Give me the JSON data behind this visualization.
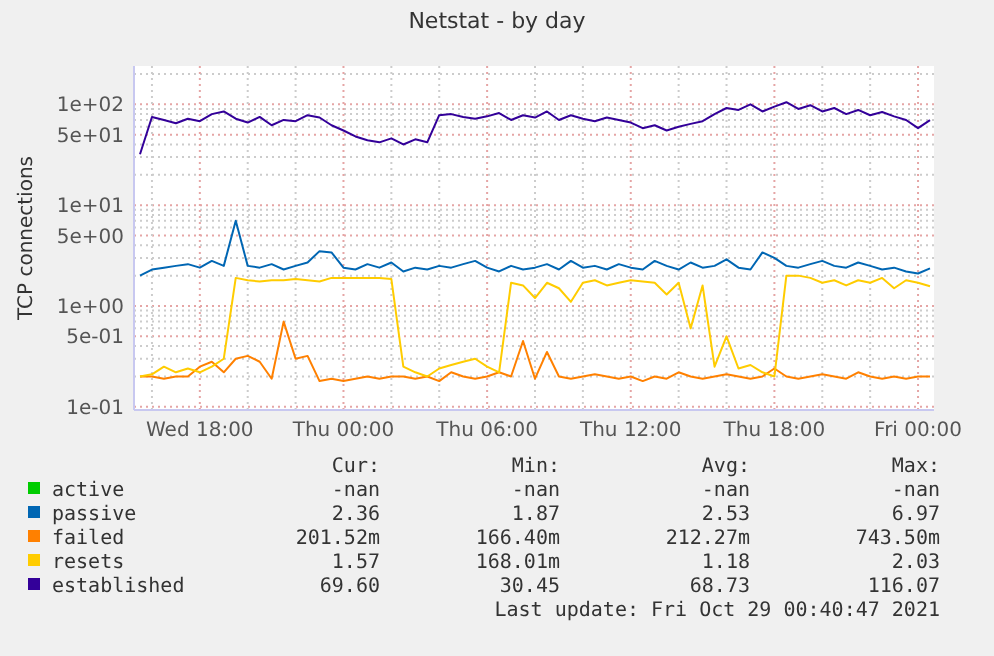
{
  "chart_data": {
    "type": "line",
    "title": "Netstat - by day",
    "ylabel": "TCP connections",
    "log": true,
    "grid": true,
    "legend": "bottom",
    "marker": "none",
    "line_style": "solid",
    "xlim": [
      "2021-10-27T15:15",
      "2021-10-29T00:40"
    ],
    "xticks": [
      {
        "value": "2021-10-27T16:00",
        "label": null
      },
      {
        "value": "2021-10-27T18:00",
        "label": "Wed 18:00"
      },
      {
        "value": "2021-10-27T20:00",
        "label": null
      },
      {
        "value": "2021-10-27T22:00",
        "label": null
      },
      {
        "value": "2021-10-28T00:00",
        "label": "Thu 00:00"
      },
      {
        "value": "2021-10-28T02:00",
        "label": null
      },
      {
        "value": "2021-10-28T04:00",
        "label": null
      },
      {
        "value": "2021-10-28T06:00",
        "label": "Thu 06:00"
      },
      {
        "value": "2021-10-28T08:00",
        "label": null
      },
      {
        "value": "2021-10-28T10:00",
        "label": null
      },
      {
        "value": "2021-10-28T12:00",
        "label": "Thu 12:00"
      },
      {
        "value": "2021-10-28T14:00",
        "label": null
      },
      {
        "value": "2021-10-28T16:00",
        "label": null
      },
      {
        "value": "2021-10-28T18:00",
        "label": "Thu 18:00"
      },
      {
        "value": "2021-10-28T20:00",
        "label": null
      },
      {
        "value": "2021-10-28T22:00",
        "label": null
      },
      {
        "value": "2021-10-29T00:00",
        "label": "Fri 00:00"
      }
    ],
    "ylim": [
      0.093,
      240
    ],
    "yticks": [
      {
        "value": 0.1,
        "label": "1e-01"
      },
      {
        "value": 0.2,
        "label": null
      },
      {
        "value": 0.3,
        "label": null
      },
      {
        "value": 0.4,
        "label": null
      },
      {
        "value": 0.5,
        "label": "5e-01"
      },
      {
        "value": 0.6,
        "label": null
      },
      {
        "value": 0.7,
        "label": null
      },
      {
        "value": 0.8,
        "label": null
      },
      {
        "value": 0.9,
        "label": null
      },
      {
        "value": 1,
        "label": "1e+00"
      },
      {
        "value": 2,
        "label": null
      },
      {
        "value": 3,
        "label": null
      },
      {
        "value": 4,
        "label": null
      },
      {
        "value": 5,
        "label": "5e+00"
      },
      {
        "value": 6,
        "label": null
      },
      {
        "value": 7,
        "label": null
      },
      {
        "value": 8,
        "label": null
      },
      {
        "value": 9,
        "label": null
      },
      {
        "value": 10,
        "label": "1e+01"
      },
      {
        "value": 20,
        "label": null
      },
      {
        "value": 30,
        "label": null
      },
      {
        "value": 40,
        "label": null
      },
      {
        "value": 50,
        "label": "5e+01"
      },
      {
        "value": 60,
        "label": null
      },
      {
        "value": 70,
        "label": null
      },
      {
        "value": 80,
        "label": null
      },
      {
        "value": 90,
        "label": null
      },
      {
        "value": 100,
        "label": "1e+02"
      },
      {
        "value": 200,
        "label": null
      }
    ],
    "x": [
      "2021-10-27T15:30",
      "2021-10-27T16:00",
      "2021-10-27T16:30",
      "2021-10-27T17:00",
      "2021-10-27T17:30",
      "2021-10-27T18:00",
      "2021-10-27T18:30",
      "2021-10-27T19:00",
      "2021-10-27T19:30",
      "2021-10-27T20:00",
      "2021-10-27T20:30",
      "2021-10-27T21:00",
      "2021-10-27T21:30",
      "2021-10-27T22:00",
      "2021-10-27T22:30",
      "2021-10-27T23:00",
      "2021-10-27T23:30",
      "2021-10-28T00:00",
      "2021-10-28T00:30",
      "2021-10-28T01:00",
      "2021-10-28T01:30",
      "2021-10-28T02:00",
      "2021-10-28T02:30",
      "2021-10-28T03:00",
      "2021-10-28T03:30",
      "2021-10-28T04:00",
      "2021-10-28T04:30",
      "2021-10-28T05:00",
      "2021-10-28T05:30",
      "2021-10-28T06:00",
      "2021-10-28T06:30",
      "2021-10-28T07:00",
      "2021-10-28T07:30",
      "2021-10-28T08:00",
      "2021-10-28T08:30",
      "2021-10-28T09:00",
      "2021-10-28T09:30",
      "2021-10-28T10:00",
      "2021-10-28T10:30",
      "2021-10-28T11:00",
      "2021-10-28T11:30",
      "2021-10-28T12:00",
      "2021-10-28T12:30",
      "2021-10-28T13:00",
      "2021-10-28T13:30",
      "2021-10-28T14:00",
      "2021-10-28T14:30",
      "2021-10-28T15:00",
      "2021-10-28T15:30",
      "2021-10-28T16:00",
      "2021-10-28T16:30",
      "2021-10-28T17:00",
      "2021-10-28T17:30",
      "2021-10-28T18:00",
      "2021-10-28T18:30",
      "2021-10-28T19:00",
      "2021-10-28T19:30",
      "2021-10-28T20:00",
      "2021-10-28T20:30",
      "2021-10-28T21:00",
      "2021-10-28T21:30",
      "2021-10-28T22:00",
      "2021-10-28T22:30",
      "2021-10-28T23:00",
      "2021-10-28T23:30",
      "2021-10-29T00:00",
      "2021-10-29T00:30"
    ],
    "series": [
      {
        "name": "active",
        "color": "#00cc00",
        "values": [
          null,
          null,
          null,
          null,
          null,
          null,
          null,
          null,
          null,
          null,
          null,
          null,
          null,
          null,
          null,
          null,
          null,
          null,
          null,
          null,
          null,
          null,
          null,
          null,
          null,
          null,
          null,
          null,
          null,
          null,
          null,
          null,
          null,
          null,
          null,
          null,
          null,
          null,
          null,
          null,
          null,
          null,
          null,
          null,
          null,
          null,
          null,
          null,
          null,
          null,
          null,
          null,
          null,
          null,
          null,
          null,
          null,
          null,
          null,
          null,
          null,
          null,
          null,
          null,
          null,
          null,
          null
        ]
      },
      {
        "name": "passive",
        "color": "#0066b3",
        "values": [
          2.0,
          2.3,
          2.4,
          2.5,
          2.6,
          2.4,
          2.8,
          2.5,
          7.0,
          2.5,
          2.4,
          2.6,
          2.3,
          2.5,
          2.7,
          3.5,
          3.4,
          2.4,
          2.3,
          2.6,
          2.4,
          2.7,
          2.2,
          2.4,
          2.3,
          2.5,
          2.4,
          2.6,
          2.8,
          2.4,
          2.2,
          2.5,
          2.3,
          2.4,
          2.6,
          2.3,
          2.8,
          2.4,
          2.5,
          2.3,
          2.6,
          2.4,
          2.3,
          2.8,
          2.5,
          2.3,
          2.7,
          2.4,
          2.5,
          2.9,
          2.4,
          2.3,
          3.4,
          3.0,
          2.5,
          2.4,
          2.6,
          2.8,
          2.5,
          2.4,
          2.7,
          2.5,
          2.3,
          2.4,
          2.2,
          2.1,
          2.36
        ]
      },
      {
        "name": "failed",
        "color": "#ff8000",
        "values": [
          0.2,
          0.2,
          0.19,
          0.2,
          0.2,
          0.25,
          0.28,
          0.22,
          0.3,
          0.32,
          0.28,
          0.19,
          0.7,
          0.3,
          0.32,
          0.18,
          0.19,
          0.18,
          0.19,
          0.2,
          0.19,
          0.2,
          0.2,
          0.19,
          0.2,
          0.18,
          0.22,
          0.2,
          0.19,
          0.2,
          0.22,
          0.2,
          0.45,
          0.19,
          0.35,
          0.2,
          0.19,
          0.2,
          0.21,
          0.2,
          0.19,
          0.2,
          0.18,
          0.2,
          0.19,
          0.22,
          0.2,
          0.19,
          0.2,
          0.21,
          0.2,
          0.19,
          0.2,
          0.24,
          0.2,
          0.19,
          0.2,
          0.21,
          0.2,
          0.19,
          0.22,
          0.2,
          0.19,
          0.2,
          0.19,
          0.2,
          0.2
        ]
      },
      {
        "name": "resets",
        "color": "#ffcc00",
        "values": [
          0.2,
          0.21,
          0.25,
          0.22,
          0.24,
          0.22,
          0.25,
          0.3,
          1.9,
          1.8,
          1.75,
          1.8,
          1.8,
          1.85,
          1.8,
          1.75,
          1.9,
          1.9,
          1.9,
          1.9,
          1.9,
          1.85,
          0.25,
          0.22,
          0.2,
          0.24,
          0.26,
          0.28,
          0.3,
          0.25,
          0.22,
          1.7,
          1.6,
          1.2,
          1.7,
          1.5,
          1.1,
          1.7,
          1.8,
          1.6,
          1.7,
          1.8,
          1.75,
          1.7,
          1.3,
          1.7,
          0.6,
          1.6,
          0.25,
          0.5,
          0.24,
          0.26,
          0.22,
          0.2,
          2.0,
          2.0,
          1.9,
          1.7,
          1.8,
          1.6,
          1.8,
          1.7,
          1.9,
          1.5,
          1.8,
          1.7,
          1.57
        ]
      },
      {
        "name": "established",
        "color": "#330099",
        "values": [
          32,
          75,
          70,
          65,
          72,
          68,
          80,
          85,
          72,
          66,
          75,
          62,
          70,
          68,
          78,
          74,
          62,
          55,
          48,
          44,
          42,
          46,
          40,
          45,
          42,
          78,
          80,
          75,
          72,
          76,
          82,
          70,
          78,
          74,
          85,
          70,
          78,
          72,
          68,
          74,
          70,
          66,
          58,
          62,
          55,
          60,
          64,
          68,
          80,
          92,
          88,
          100,
          85,
          95,
          105,
          90,
          98,
          85,
          92,
          80,
          88,
          78,
          84,
          76,
          70,
          58,
          69.6
        ]
      }
    ],
    "annotations": [
      "Cur:",
      "Min:",
      "Avg:",
      "Max:",
      "-nan",
      "-nan",
      "-nan",
      "-nan",
      "2.36",
      "1.87",
      "2.53",
      "6.97",
      "201.52m",
      "166.40m",
      "212.27m",
      "743.50m",
      "1.57",
      "168.01m",
      "1.18",
      "2.03",
      "69.60",
      "30.45",
      "68.73",
      "116.07",
      "Last update: Fri Oct 29 00:40:47 2021"
    ]
  }
}
